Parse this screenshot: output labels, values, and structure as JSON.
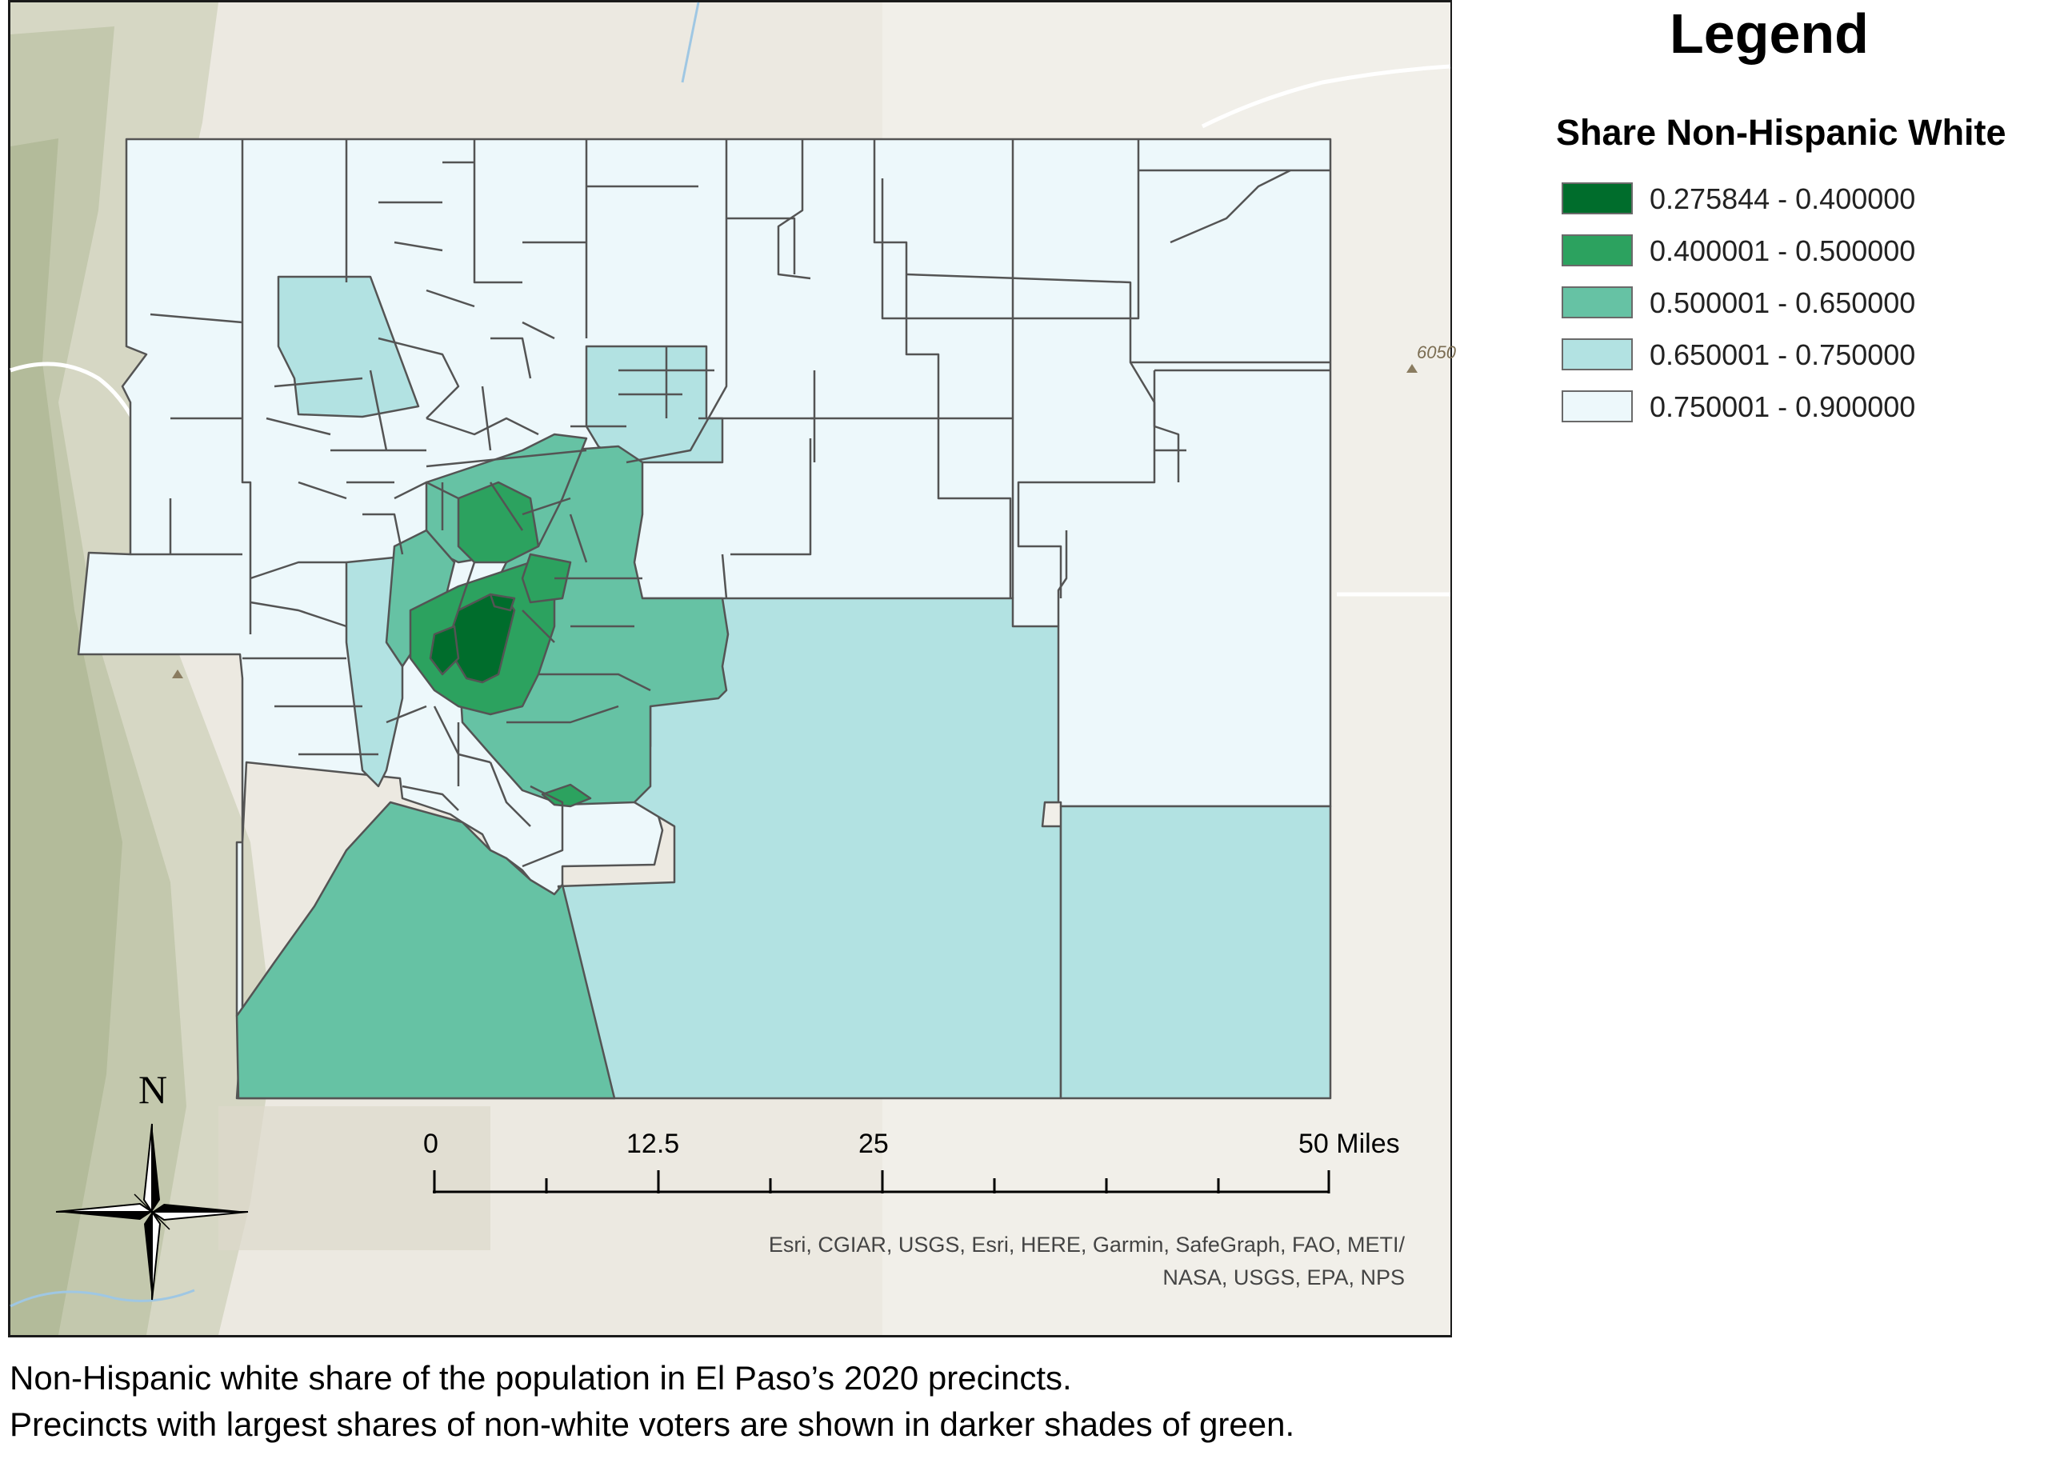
{
  "legend": {
    "title": "Legend",
    "field": "Share Non-Hispanic White",
    "classes": [
      {
        "label": "0.275844 - 0.400000",
        "color": "#006d2c"
      },
      {
        "label": "0.400001 - 0.500000",
        "color": "#2ca25f"
      },
      {
        "label": "0.500001 - 0.650000",
        "color": "#66c2a4"
      },
      {
        "label": "0.650001 - 0.750000",
        "color": "#b2e2e2"
      },
      {
        "label": "0.750001 - 0.900000",
        "color": "#edf8fb"
      }
    ]
  },
  "scale_bar": {
    "ticks": [
      "0",
      "12.5",
      "25",
      "50 Miles"
    ]
  },
  "north_arrow": {
    "label": "N",
    "icon": "compass-rose-icon"
  },
  "attribution": {
    "line1": "Esri, CGIAR, USGS, Esri, HERE, Garmin, SafeGraph, FAO, METI/",
    "line2": "NASA, USGS, EPA, NPS"
  },
  "basemap": {
    "elevation_label": "6050"
  },
  "caption": {
    "line1": "Non-Hispanic white share of the population in El Paso’s 2020 precincts.",
    "line2": "Precincts with largest shares of non-white voters are shown in darker shades of green."
  },
  "colors": {
    "outline": "#545454",
    "frame": "#1a1a1a"
  }
}
